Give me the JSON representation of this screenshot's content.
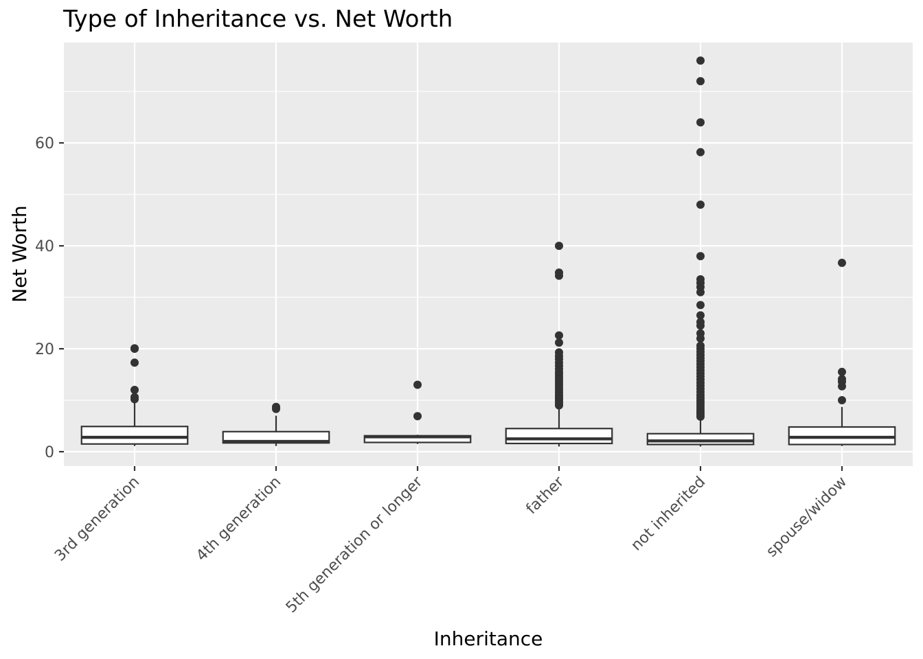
{
  "chart_data": {
    "type": "boxplot",
    "title": "Type of Inheritance vs. Net Worth",
    "xlabel": "Inheritance",
    "ylabel": "Net Worth",
    "ylim": [
      -2.8,
      79.5
    ],
    "yticks": [
      0,
      20,
      40,
      60
    ],
    "grid": true,
    "legend": "none",
    "colors": {
      "panel": "#ebebeb",
      "grid": "#ffffff",
      "box_fill": "#ffffff",
      "box_stroke": "#333333",
      "outlier": "#333333",
      "axis_text": "#4d4d4d"
    },
    "categories": [
      "3rd generation",
      "4th generation",
      "5th generation or longer",
      "father",
      "not inherited",
      "spouse/widow"
    ],
    "boxes": [
      {
        "category": "3rd generation",
        "whisker_low": 1.1,
        "q1": 1.5,
        "median": 2.8,
        "q3": 4.9,
        "whisker_high": 9.5,
        "outliers": [
          20.0,
          20.1,
          17.3,
          12.0,
          10.6,
          10.2
        ]
      },
      {
        "category": "4th generation",
        "whisker_low": 1.1,
        "q1": 1.7,
        "median": 2.0,
        "q3": 3.9,
        "whisker_high": 7.0,
        "outliers": [
          8.7,
          8.3
        ]
      },
      {
        "category": "5th generation or longer",
        "whisker_low": 1.5,
        "q1": 1.8,
        "median": 2.9,
        "q3": 3.1,
        "whisker_high": 3.3,
        "outliers": [
          13.0,
          6.9
        ]
      },
      {
        "category": "father",
        "whisker_low": 1.0,
        "q1": 1.6,
        "median": 2.5,
        "q3": 4.5,
        "whisker_high": 8.8,
        "outliers": [
          40.0,
          34.8,
          34.2,
          22.6,
          21.2,
          19.3,
          18.6,
          18.0,
          17.3,
          16.7,
          16.1,
          15.5,
          15.0,
          14.5,
          14.0,
          13.5,
          13.0,
          12.5,
          12.0,
          11.5,
          11.0,
          10.6,
          10.2,
          9.8,
          9.4,
          9.0
        ]
      },
      {
        "category": "not inherited",
        "whisker_low": 1.0,
        "q1": 1.4,
        "median": 2.1,
        "q3": 3.5,
        "whisker_high": 6.5,
        "outliers": [
          76.0,
          72.0,
          64.0,
          58.2,
          48.0,
          38.0,
          33.5,
          32.8,
          32.0,
          31.0,
          28.5,
          26.5,
          25.2,
          24.5,
          23.0,
          22.0,
          20.6,
          20.0,
          19.4,
          18.8,
          18.2,
          17.6,
          17.0,
          16.4,
          15.8,
          15.2,
          14.6,
          14.0,
          13.4,
          12.8,
          12.2,
          11.6,
          11.0,
          10.5,
          10.0,
          9.5,
          9.0,
          8.5,
          8.0,
          7.6,
          7.2,
          6.8
        ]
      },
      {
        "category": "spouse/widow",
        "whisker_low": 1.1,
        "q1": 1.4,
        "median": 2.8,
        "q3": 4.8,
        "whisker_high": 8.7,
        "outliers": [
          36.7,
          15.5,
          14.1,
          13.6,
          12.7,
          10.0
        ]
      }
    ]
  }
}
